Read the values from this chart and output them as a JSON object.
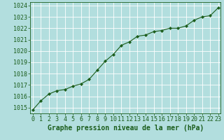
{
  "x": [
    0,
    1,
    2,
    3,
    4,
    5,
    6,
    7,
    8,
    9,
    10,
    11,
    12,
    13,
    14,
    15,
    16,
    17,
    18,
    19,
    20,
    21,
    22,
    23
  ],
  "y": [
    1014.8,
    1015.6,
    1016.2,
    1016.5,
    1016.6,
    1016.9,
    1017.1,
    1017.5,
    1018.3,
    1019.1,
    1019.7,
    1020.5,
    1020.8,
    1021.3,
    1021.4,
    1021.7,
    1021.8,
    1022.0,
    1022.0,
    1022.2,
    1022.7,
    1023.0,
    1023.1,
    1023.8
  ],
  "line_color": "#1a5c1a",
  "marker_color": "#1a5c1a",
  "bg_color": "#b2dede",
  "grid_color": "#d0e8e8",
  "xlabel": "Graphe pression niveau de la mer (hPa)",
  "xlabel_fontsize": 7,
  "tick_fontsize": 6,
  "ylim": [
    1014.5,
    1024.3
  ],
  "yticks": [
    1015,
    1016,
    1017,
    1018,
    1019,
    1020,
    1021,
    1022,
    1023,
    1024
  ],
  "xlim": [
    -0.3,
    23.3
  ],
  "xticks": [
    0,
    1,
    2,
    3,
    4,
    5,
    6,
    7,
    8,
    9,
    10,
    11,
    12,
    13,
    14,
    15,
    16,
    17,
    18,
    19,
    20,
    21,
    22,
    23
  ]
}
